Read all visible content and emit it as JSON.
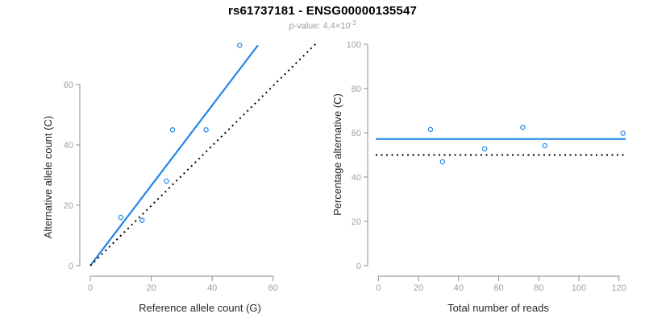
{
  "header": {
    "title": "rs61737181 - ENSG00000135547",
    "pvalue": {
      "label": "p-value:",
      "value": "4.4",
      "times": "×",
      "base": "10",
      "exponent": "-3"
    }
  },
  "colors": {
    "accent_blue": "#2086E8",
    "line_black": "#000000",
    "axis_gray": "#8C8C8C",
    "tick_label_gray": "#9E9E9E",
    "axis_title_dark": "#262626",
    "subtitle_gray": "#9E9E9E",
    "background": "#FFFFFF"
  },
  "chart_data": [
    {
      "type": "scatter",
      "name": "allele-counts-scatter",
      "title": "",
      "xlabel": "Reference allele count (G)",
      "ylabel": "Alternative allele count (C)",
      "xlim": [
        0,
        74
      ],
      "ylim": [
        0,
        74
      ],
      "xticks": [
        0,
        20,
        40,
        60
      ],
      "yticks": [
        0,
        20,
        40,
        60
      ],
      "grid": false,
      "legend": false,
      "points": [
        [
          10,
          16
        ],
        [
          17,
          15
        ],
        [
          25,
          28
        ],
        [
          27,
          45
        ],
        [
          38,
          45
        ],
        [
          49,
          73
        ]
      ],
      "lines": [
        {
          "name": "fit-line",
          "style": "solid",
          "color": "#2086E8",
          "width": 2.2,
          "from": [
            0,
            0
          ],
          "to": [
            55,
            73
          ]
        },
        {
          "name": "identity-line",
          "style": "dotted",
          "color": "#000000",
          "width": 2,
          "from": [
            0,
            0
          ],
          "to": [
            74,
            73.5
          ]
        }
      ]
    },
    {
      "type": "scatter",
      "name": "percentage-vs-reads-scatter",
      "title": "",
      "xlabel": "Total number of reads",
      "ylabel": "Percentage alternative (C)",
      "xlim": [
        0,
        125
      ],
      "ylim": [
        0,
        100
      ],
      "xticks": [
        0,
        20,
        40,
        60,
        80,
        100,
        120
      ],
      "yticks": [
        0,
        20,
        40,
        60,
        80,
        100
      ],
      "grid": false,
      "legend": false,
      "points": [
        [
          26,
          61.5
        ],
        [
          32,
          46.9
        ],
        [
          53,
          52.8
        ],
        [
          72,
          62.5
        ],
        [
          83,
          54.2
        ],
        [
          122,
          59.8
        ]
      ],
      "lines": [
        {
          "name": "mean-percentage-line",
          "style": "solid",
          "color": "#2086E8",
          "width": 2.2,
          "hline": 57.2
        },
        {
          "name": "expected-50-percent-line",
          "style": "dotted",
          "color": "#000000",
          "width": 2,
          "hline": 50
        }
      ]
    }
  ]
}
